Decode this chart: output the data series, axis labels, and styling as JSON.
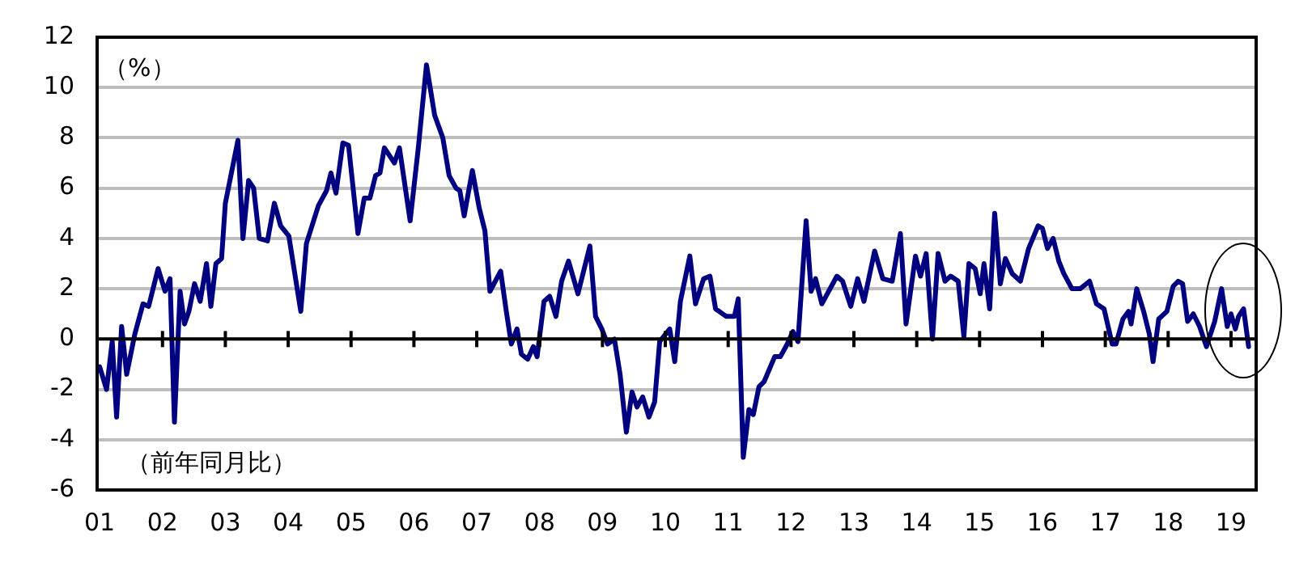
{
  "chart_data": {
    "type": "line",
    "ylabel": "（%）",
    "annotations": [
      "（前年同月比）"
    ],
    "xlim": [
      2000.96,
      2019.4
    ],
    "xticks": [
      {
        "value": 2001,
        "label": "01"
      },
      {
        "value": 2002,
        "label": "02"
      },
      {
        "value": 2003,
        "label": "03"
      },
      {
        "value": 2004,
        "label": "04"
      },
      {
        "value": 2005,
        "label": "05"
      },
      {
        "value": 2006,
        "label": "06"
      },
      {
        "value": 2007,
        "label": "07"
      },
      {
        "value": 2008,
        "label": "08"
      },
      {
        "value": 2009,
        "label": "09"
      },
      {
        "value": 2010,
        "label": "10"
      },
      {
        "value": 2011,
        "label": "11"
      },
      {
        "value": 2012,
        "label": "12"
      },
      {
        "value": 2013,
        "label": "13"
      },
      {
        "value": 2014,
        "label": "14"
      },
      {
        "value": 2015,
        "label": "15"
      },
      {
        "value": 2016,
        "label": "16"
      },
      {
        "value": 2017,
        "label": "17"
      },
      {
        "value": 2018,
        "label": "18"
      },
      {
        "value": 2019,
        "label": "19"
      }
    ],
    "ylim": [
      -6,
      12
    ],
    "yticks": [
      -6,
      -4,
      -2,
      0,
      2,
      4,
      6,
      8,
      10,
      12
    ],
    "grid": "y",
    "legend": false,
    "marker": "none",
    "line_style": "solid",
    "series": [
      {
        "color": "#000080",
        "x": [
          2001.0,
          2001.11,
          2001.2,
          2001.27,
          2001.35,
          2001.43,
          2001.56,
          2001.69,
          2001.78,
          2001.93,
          2002.04,
          2002.12,
          2002.19,
          2002.28,
          2002.35,
          2002.42,
          2002.51,
          2002.6,
          2002.7,
          2002.77,
          2002.85,
          2002.94,
          2003.0,
          2003.2,
          2003.28,
          2003.37,
          2003.45,
          2003.54,
          2003.67,
          2003.78,
          2003.88,
          2004.01,
          2004.2,
          2004.29,
          2004.48,
          2004.61,
          2004.68,
          2004.76,
          2004.87,
          2004.96,
          2005.11,
          2005.21,
          2005.3,
          2005.39,
          2005.46,
          2005.53,
          2005.69,
          2005.77,
          2005.94,
          2006.07,
          2006.2,
          2006.33,
          2006.46,
          2006.56,
          2006.67,
          2006.73,
          2006.8,
          2006.93,
          2007.04,
          2007.13,
          2007.21,
          2007.38,
          2007.47,
          2007.55,
          2007.64,
          2007.71,
          2007.81,
          2007.9,
          2007.96,
          2008.07,
          2008.16,
          2008.26,
          2008.35,
          2008.46,
          2008.61,
          2008.8,
          2008.89,
          2008.99,
          2009.08,
          2009.19,
          2009.28,
          2009.38,
          2009.47,
          2009.55,
          2009.64,
          2009.74,
          2009.83,
          2009.91,
          2010.07,
          2010.15,
          2010.24,
          2010.39,
          2010.48,
          2010.61,
          2010.71,
          2010.8,
          2010.97,
          2011.1,
          2011.16,
          2011.24,
          2011.33,
          2011.4,
          2011.49,
          2011.57,
          2011.74,
          2011.83,
          2011.94,
          2012.03,
          2012.11,
          2012.24,
          2012.32,
          2012.39,
          2012.49,
          2012.73,
          2012.82,
          2012.95,
          2013.06,
          2013.16,
          2013.33,
          2013.46,
          2013.61,
          2013.74,
          2013.83,
          2013.98,
          2014.06,
          2014.15,
          2014.25,
          2014.34,
          2014.45,
          2014.54,
          2014.66,
          2014.75,
          2014.83,
          2014.93,
          2015.01,
          2015.07,
          2015.16,
          2015.24,
          2015.33,
          2015.41,
          2015.52,
          2015.65,
          2015.78,
          2015.93,
          2016.0,
          2016.08,
          2016.17,
          2016.26,
          2016.34,
          2016.47,
          2016.6,
          2016.75,
          2016.86,
          2016.98,
          2017.11,
          2017.17,
          2017.28,
          2017.37,
          2017.41,
          2017.5,
          2017.61,
          2017.7,
          2017.76,
          2017.85,
          2017.98,
          2018.08,
          2018.16,
          2018.23,
          2018.31,
          2018.4,
          2018.5,
          2018.61,
          2018.74,
          2018.85,
          2018.94,
          2019.0,
          2019.07,
          2019.12,
          2019.2,
          2019.28
        ],
        "values": [
          -1.1,
          -2.0,
          -0.1,
          -3.1,
          0.5,
          -1.4,
          0.2,
          1.4,
          1.3,
          2.8,
          1.9,
          2.4,
          -3.3,
          1.9,
          0.6,
          1.1,
          2.2,
          1.5,
          3.0,
          1.3,
          3.0,
          3.2,
          5.4,
          7.9,
          4.0,
          6.3,
          6.0,
          4.0,
          3.9,
          5.4,
          4.5,
          4.1,
          1.1,
          3.8,
          5.3,
          5.9,
          6.6,
          5.8,
          7.8,
          7.7,
          4.2,
          5.6,
          5.6,
          6.5,
          6.6,
          7.6,
          7.0,
          7.6,
          4.7,
          7.6,
          10.9,
          8.9,
          8.0,
          6.5,
          6.0,
          5.9,
          4.9,
          6.7,
          5.2,
          4.3,
          1.9,
          2.7,
          1.1,
          -0.2,
          0.4,
          -0.6,
          -0.8,
          -0.3,
          -0.7,
          1.5,
          1.7,
          0.9,
          2.3,
          3.1,
          1.8,
          3.7,
          0.9,
          0.4,
          -0.2,
          0.0,
          -1.4,
          -3.7,
          -2.1,
          -2.7,
          -2.3,
          -3.1,
          -2.5,
          -0.1,
          0.4,
          -0.9,
          1.5,
          3.3,
          1.4,
          2.4,
          2.5,
          1.2,
          0.9,
          0.9,
          1.6,
          -4.7,
          -2.8,
          -3.0,
          -1.9,
          -1.7,
          -0.7,
          -0.7,
          -0.2,
          0.3,
          -0.1,
          4.7,
          1.9,
          2.4,
          1.4,
          2.5,
          2.3,
          1.3,
          2.4,
          1.5,
          3.5,
          2.4,
          2.3,
          4.2,
          0.6,
          3.3,
          2.5,
          3.4,
          0.0,
          3.4,
          2.3,
          2.5,
          2.3,
          0.1,
          3.0,
          2.8,
          1.8,
          3.0,
          1.2,
          5.0,
          2.2,
          3.2,
          2.6,
          2.3,
          3.6,
          4.5,
          4.4,
          3.6,
          4.0,
          3.1,
          2.6,
          2.0,
          2.0,
          2.3,
          1.4,
          1.2,
          -0.2,
          -0.2,
          0.8,
          1.1,
          0.6,
          2.0,
          1.1,
          0.2,
          -0.9,
          0.8,
          1.1,
          2.1,
          2.3,
          2.2,
          0.7,
          1.0,
          0.5,
          -0.3,
          0.7,
          2.0,
          0.5,
          1.0,
          0.4,
          0.9,
          1.2,
          -0.3
        ]
      }
    ]
  }
}
